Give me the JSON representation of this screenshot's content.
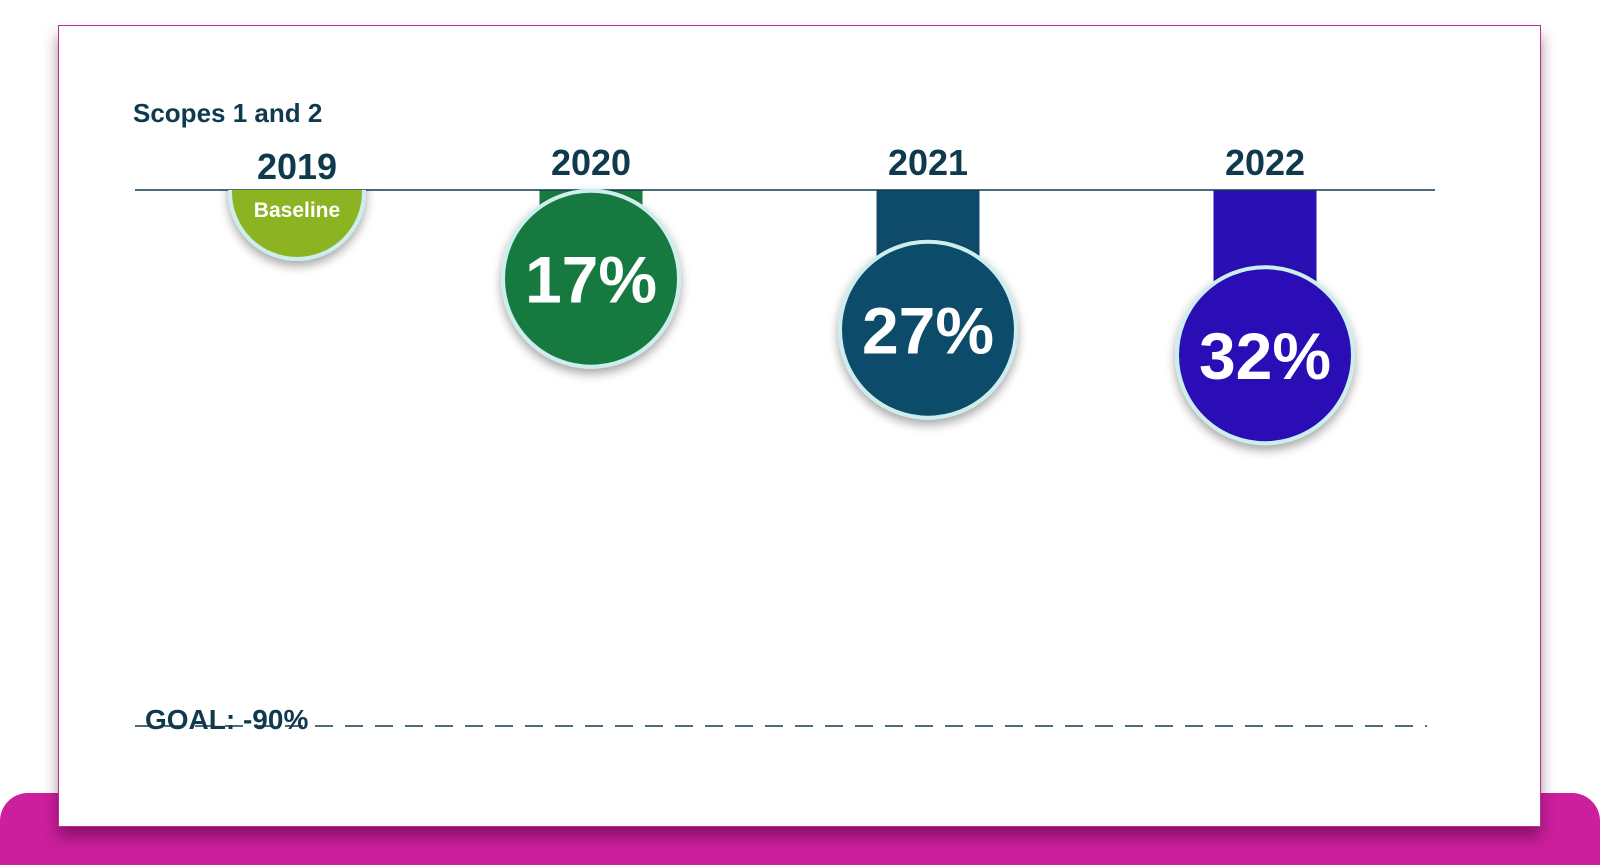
{
  "chart_data": {
    "type": "bar",
    "subtitle": "Scopes 1 and 2",
    "categories": [
      "2019",
      "2020",
      "2021",
      "2022"
    ],
    "series": [
      {
        "values": [
          0,
          17,
          27,
          32
        ],
        "labels": [
          "Baseline",
          "17%",
          "27%",
          "32%"
        ],
        "colors": [
          "#8cb422",
          "#197a40",
          "#0e4b6b",
          "#2a0fb4"
        ]
      }
    ],
    "goal": {
      "label": "GOAL: -90%",
      "value": 90
    },
    "ylim": [
      0,
      90
    ],
    "grid": false,
    "legend": "none"
  },
  "colors": {
    "text": "#0f3a4e",
    "accent": "#cc1f9e",
    "ring": "#cdeeee"
  }
}
